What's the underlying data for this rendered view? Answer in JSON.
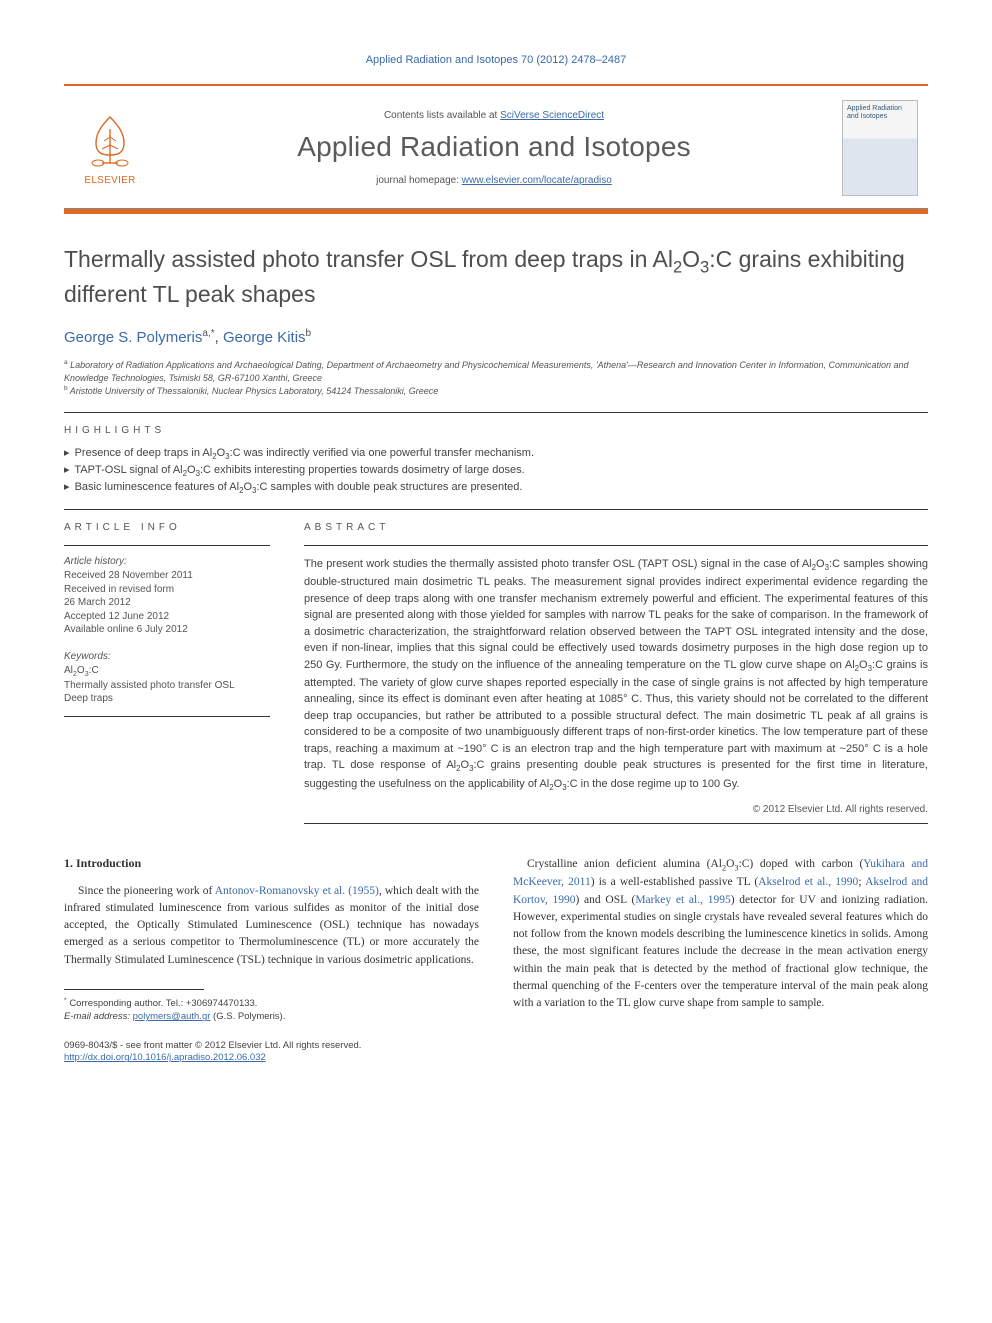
{
  "journal_ref": "Applied Radiation and Isotopes 70 (2012) 2478–2487",
  "masthead": {
    "publisher": "ELSEVIER",
    "contents": "Contents lists available at ",
    "contents_link": "SciVerse ScienceDirect",
    "journal": "Applied Radiation and Isotopes",
    "homepage_prefix": "journal homepage: ",
    "homepage_url": "www.elsevier.com/locate/apradiso",
    "cover_label": "Applied Radiation and Isotopes"
  },
  "title_html": "Thermally assisted photo transfer OSL from deep traps in Al<sub>2</sub>O<sub>3</sub>:C grains exhibiting different TL peak shapes",
  "authors": [
    {
      "name": "George S. Polymeris",
      "affil": "a,",
      "star": "*"
    },
    {
      "name": "George Kitis",
      "affil": "b",
      "star": ""
    }
  ],
  "affiliations": [
    {
      "tag": "a",
      "text": "Laboratory of Radiation Applications and Archaeological Dating, Department of Archaeometry and Physicochemical Measurements, 'Athena'—Research and Innovation Center in Information, Communication and Knowledge Technologies, Tsimiski 58, GR-67100 Xanthi, Greece"
    },
    {
      "tag": "b",
      "text": "Aristotle University of Thessaloniki, Nuclear Physics Laboratory, 54124 Thessaloniki, Greece"
    }
  ],
  "highlights_head": "HIGHLIGHTS",
  "highlights": [
    "Presence of deep traps in Al<sub>2</sub>O<sub>3</sub>:C was indirectly verified via one powerful transfer mechanism.",
    "TAPT-OSL signal of Al<sub>2</sub>O<sub>3</sub>:C exhibits interesting properties towards dosimetry of large doses.",
    "Basic luminescence features of Al<sub>2</sub>O<sub>3</sub>:C samples with double peak structures are presented."
  ],
  "info_head": "ARTICLE INFO",
  "history_label": "Article history:",
  "history": [
    "Received 28 November 2011",
    "Received in revised form",
    "26 March 2012",
    "Accepted 12 June 2012",
    "Available online 6 July 2012"
  ],
  "keywords_label": "Keywords:",
  "keywords": [
    "Al<sub>2</sub>O<sub>3</sub>:C",
    "Thermally assisted photo transfer OSL",
    "Deep traps"
  ],
  "abstract_head": "ABSTRACT",
  "abstract_html": "The present work studies the thermally assisted photo transfer OSL (TAPT OSL) signal in the case of Al<sub>2</sub>O<sub>3</sub>:C samples showing double-structured main dosimetric TL peaks. The measurement signal provides indirect experimental evidence regarding the presence of deep traps along with one transfer mechanism extremely powerful and efficient. The experimental features of this signal are presented along with those yielded for samples with narrow TL peaks for the sake of comparison. In the framework of a dosimetric characterization, the straightforward relation observed between the TAPT OSL integrated intensity and the dose, even if non-linear, implies that this signal could be effectively used towards dosimetry purposes in the high dose region up to 250 Gy. Furthermore, the study on the influence of the annealing temperature on the TL glow curve shape on Al<sub>2</sub>O<sub>3</sub>:C grains is attempted. The variety of glow curve shapes reported especially in the case of single grains is not affected by high temperature annealing, since its effect is dominant even after heating at 1085° C. Thus, this variety should not be correlated to the different deep trap occupancies, but rather be attributed to a possible structural defect. The main dosimetric TL peak af all grains is considered to be a composite of two unambiguously different traps of non-first-order kinetics. The low temperature part of these traps, reaching a maximum at ~190° C is an electron trap and the high temperature part with maximum at ~250° C is a hole trap. TL dose response of Al<sub>2</sub>O<sub>3</sub>:C grains presenting double peak structures is presented for the first time in literature, suggesting the usefulness on the applicability of Al<sub>2</sub>O<sub>3</sub>:C in the dose regime up to 100 Gy.",
  "copyright": "© 2012 Elsevier Ltd. All rights reserved.",
  "section1_head": "1. Introduction",
  "para_left_html": "Since the pioneering work of <a href='#'>Antonov-Romanovsky et al. (1955)</a>, which dealt with the infrared stimulated luminescence from various sulfides as monitor of the initial dose accepted, the Optically Stimulated Luminescence (OSL) technique has nowadays emerged as a serious competitor to Thermoluminescence (TL) or more accurately the Thermally Stimulated Luminescence (TSL) technique in various dosimetric applications.",
  "para_right_html": "Crystalline anion deficient alumina (Al<sub>2</sub>O<sub>3</sub>:C) doped with carbon (<a href='#'>Yukihara and McKeever, 2011</a>) is a well-established passive TL (<a href='#'>Akselrod et al., 1990</a>; <a href='#'>Akselrod and Kortov, 1990</a>) and OSL (<a href='#'>Markey et al., 1995</a>) detector for UV and ionizing radiation. However, experimental studies on single crystals have revealed several features which do not follow from the known models describing the luminescence kinetics in solids. Among these, the most significant features include the decrease in the mean activation energy within the main peak that is detected by the method of fractional glow technique, the thermal quenching of the F-centers over the temperature interval of the main peak along with a variation to the TL glow curve shape from sample to sample.",
  "footnote": {
    "star": "*",
    "corr": "Corresponding author. Tel.: +306974470133.",
    "email_label": "E-mail address:",
    "email": "polymers@auth.gr",
    "email_who": "(G.S. Polymeris)."
  },
  "bottom": {
    "issn": "0969-8043/$ - see front matter © 2012 Elsevier Ltd. All rights reserved.",
    "doi": "http://dx.doi.org/10.1016/j.apradiso.2012.06.032"
  },
  "colors": {
    "accent": "#e06820",
    "link": "#3a6aa8",
    "text": "#444"
  }
}
